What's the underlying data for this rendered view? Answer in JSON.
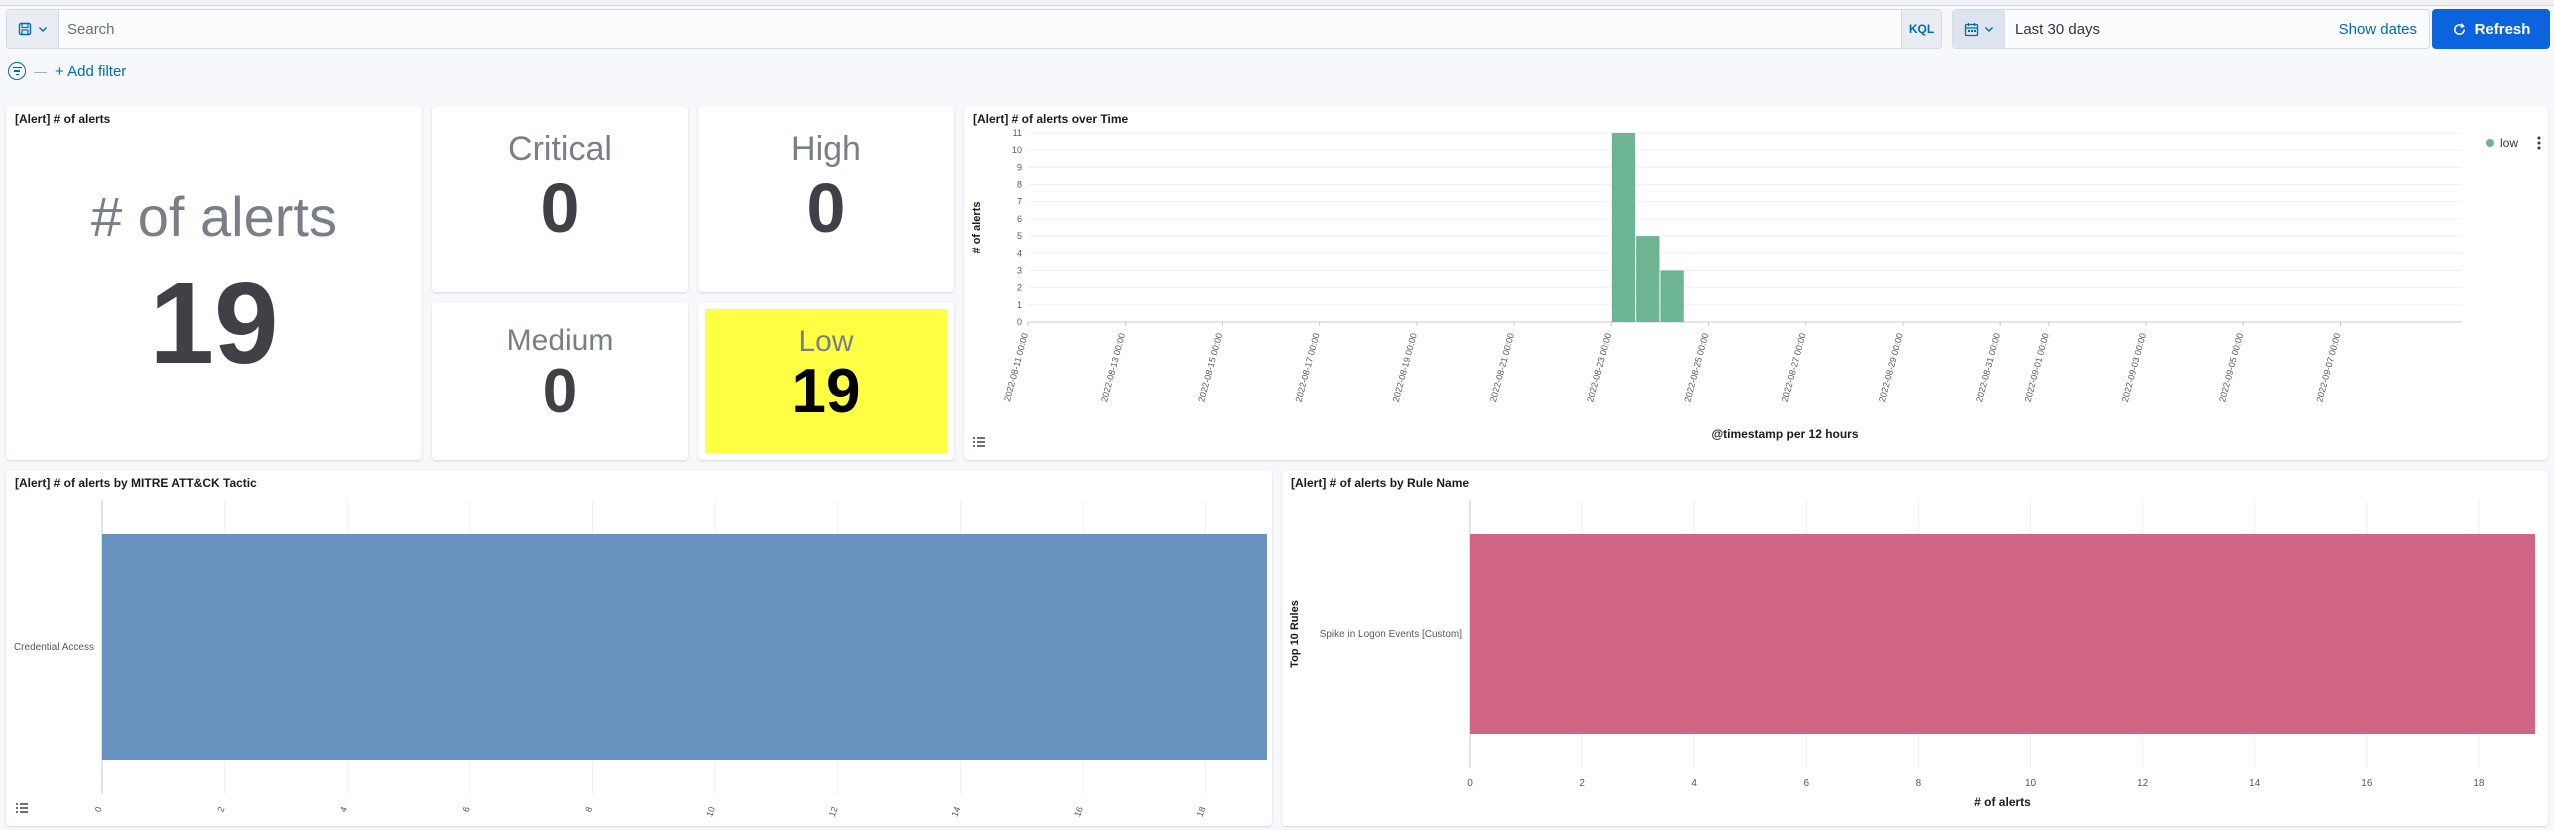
{
  "search": {
    "placeholder": "Search",
    "language": "KQL"
  },
  "date_picker": {
    "range": "Last 30 days",
    "show_dates": "Show dates"
  },
  "refresh_label": "Refresh",
  "filters": {
    "add_filter": "+ Add filter"
  },
  "panels": {
    "alert_count": {
      "title": "[Alert] # of alerts",
      "label": "# of alerts",
      "value": "19"
    },
    "critical": {
      "label": "Critical",
      "value": "0"
    },
    "high": {
      "label": "High",
      "value": "0"
    },
    "medium": {
      "label": "Medium",
      "value": "0"
    },
    "low": {
      "label": "Low",
      "value": "19",
      "highlight_color": "#ffff44"
    },
    "over_time": {
      "title": "[Alert] # of alerts over Time"
    },
    "by_tactic": {
      "title": "[Alert] # of alerts by MITRE ATT&CK Tactic"
    },
    "by_rule": {
      "title": "[Alert] # of alerts by Rule Name"
    }
  },
  "colors": {
    "accent": "#0b64dd",
    "low_series": "#6db493",
    "tactic_bar": "#6892c0",
    "rule_bar": "#d06485"
  },
  "chart_data": [
    {
      "id": "over_time",
      "type": "bar",
      "title": "[Alert] # of alerts over Time",
      "xlabel": "@timestamp per 12 hours",
      "ylabel": "# of alerts",
      "ylim": [
        0,
        11
      ],
      "yticks": [
        "0",
        "1",
        "2",
        "3",
        "4",
        "5",
        "6",
        "7",
        "8",
        "9",
        "10",
        "11"
      ],
      "xticks": [
        "2022-08-11 00:00",
        "2022-08-13 00:00",
        "2022-08-15 00:00",
        "2022-08-17 00:00",
        "2022-08-19 00:00",
        "2022-08-21 00:00",
        "2022-08-23 00:00",
        "2022-08-25 00:00",
        "2022-08-27 00:00",
        "2022-08-29 00:00",
        "2022-08-31 00:00",
        "2022-09-01 00:00",
        "2022-09-03 00:00",
        "2022-09-05 00:00",
        "2022-09-07 00:00"
      ],
      "legend": {
        "position": "top-right",
        "entries": [
          "low"
        ]
      },
      "series": [
        {
          "name": "low",
          "x": [
            "2022-08-23 00:00",
            "2022-08-23 12:00",
            "2022-08-24 00:00"
          ],
          "values": [
            11,
            5,
            3
          ]
        }
      ]
    },
    {
      "id": "by_tactic",
      "type": "bar",
      "orientation": "horizontal",
      "title": "[Alert] # of alerts by MITRE ATT&CK Tactic",
      "categories": [
        "Credential Access"
      ],
      "values": [
        19
      ],
      "xlim": [
        0,
        19
      ],
      "xticks": [
        "0",
        "2",
        "4",
        "6",
        "8",
        "10",
        "12",
        "14",
        "16",
        "18"
      ]
    },
    {
      "id": "by_rule",
      "type": "bar",
      "orientation": "horizontal",
      "title": "[Alert] # of alerts by Rule Name",
      "categories": [
        "Spike in Logon Events [Custom]"
      ],
      "values": [
        19
      ],
      "xlim": [
        0,
        19
      ],
      "xticks": [
        "0",
        "2",
        "4",
        "6",
        "8",
        "10",
        "12",
        "14",
        "16",
        "18"
      ],
      "xlabel": "# of alerts",
      "ylabel": "Top 10 Rules"
    }
  ]
}
